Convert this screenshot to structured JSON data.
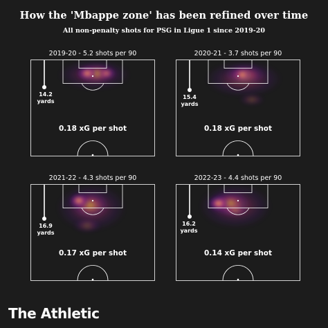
{
  "title": "How the 'Mbappe zone' has been refined over time",
  "subtitle": "All non-penalty shots for PSG in Ligue 1 since 2019-20",
  "brand": "The Athletic",
  "colors": {
    "background": "#1c1c1c",
    "pitch_lines": "#ffffff",
    "heat_low": "#5a1a8a",
    "heat_mid": "#c83a7a",
    "heat_high": "#ffd23a"
  },
  "chart_data": [
    {
      "type": "heatmap",
      "title": "2019-20 - 5.2 shots per 90",
      "season": "2019-20",
      "shots_per_90": 5.2,
      "median_distance_label": [
        "14.2",
        "yards"
      ],
      "median_distance_yards": 14.2,
      "xg_label": "0.18 xG per shot",
      "xg_per_shot": 0.18
    },
    {
      "type": "heatmap",
      "title": "2020-21 - 3.7 shots per 90",
      "season": "2020-21",
      "shots_per_90": 3.7,
      "median_distance_label": [
        "15.4",
        "yards"
      ],
      "median_distance_yards": 15.4,
      "xg_label": "0.18 xG per shot",
      "xg_per_shot": 0.18
    },
    {
      "type": "heatmap",
      "title": "2021-22 - 4.3 shots per 90",
      "season": "2021-22",
      "shots_per_90": 4.3,
      "median_distance_label": [
        "16.9",
        "yards"
      ],
      "median_distance_yards": 16.9,
      "xg_label": "0.17 xG per shot",
      "xg_per_shot": 0.17
    },
    {
      "type": "heatmap",
      "title": "2022-23 - 4.4 shots per 90",
      "season": "2022-23",
      "shots_per_90": 4.4,
      "median_distance_label": [
        "16.2",
        "yards"
      ],
      "median_distance_yards": 16.2,
      "xg_label": "0.14 xG per shot",
      "xg_per_shot": 0.14
    }
  ]
}
